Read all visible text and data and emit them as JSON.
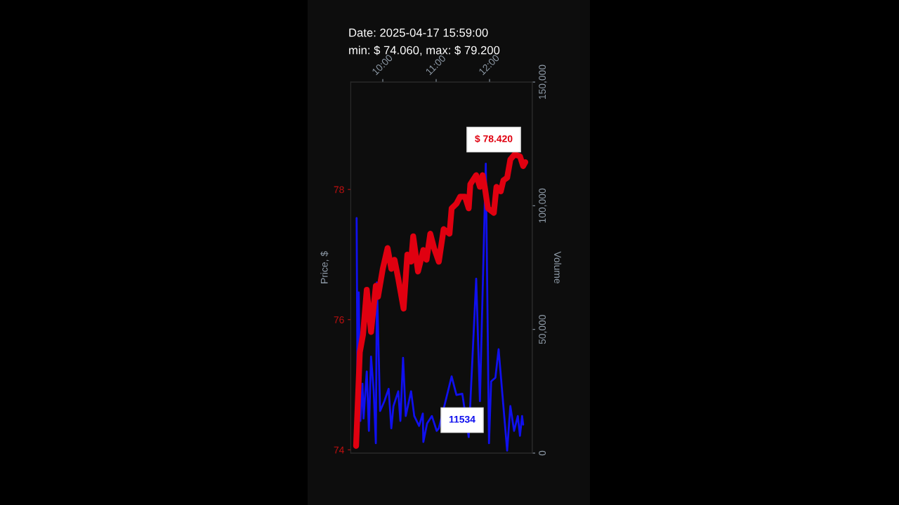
{
  "chart_data": {
    "type": "line",
    "title": "Date: 2025-04-17 15:59:00",
    "subtitle": "min: $ 74.060, max: $ 79.200",
    "ylabel": "Price, $",
    "y2label": "Volume",
    "xlim": [
      9.4,
      12.8
    ],
    "xticks": [
      {
        "value": 10,
        "label": "10:00"
      },
      {
        "value": 11,
        "label": "11:00"
      },
      {
        "value": 12,
        "label": "12:00"
      }
    ],
    "ylim": [
      73.95,
      79.65
    ],
    "yticks": [
      74,
      76,
      78
    ],
    "y2lim": [
      0,
      150000
    ],
    "y2ticks": [
      {
        "value": 0,
        "label": "0"
      },
      {
        "value": 50000,
        "label": "50,000"
      },
      {
        "value": 100000,
        "label": "100,000"
      },
      {
        "value": 150000,
        "label": "150,000"
      }
    ],
    "grid": false,
    "legend": false,
    "marker": "none",
    "line_style": "solid",
    "series": [
      {
        "color": "#e00010",
        "x": [
          9.5,
          9.57,
          9.63,
          9.7,
          9.78,
          9.87,
          9.91,
          10.0,
          10.09,
          10.16,
          10.22,
          10.29,
          10.39,
          10.46,
          10.53,
          10.57,
          10.66,
          10.76,
          10.82,
          10.89,
          10.96,
          11.05,
          11.14,
          11.25,
          11.29,
          11.38,
          11.45,
          11.54,
          11.61,
          11.64,
          11.75,
          11.82,
          11.87,
          11.91,
          11.97,
          12.08,
          12.13,
          12.21,
          12.26,
          12.33,
          12.39,
          12.47,
          12.57,
          12.63,
          12.67
        ],
        "values": [
          74.06,
          75.5,
          75.77,
          76.46,
          75.81,
          76.52,
          76.35,
          76.78,
          77.1,
          76.78,
          76.92,
          76.63,
          76.17,
          77.0,
          76.89,
          77.28,
          76.74,
          77.07,
          76.92,
          77.32,
          77.1,
          76.89,
          77.39,
          77.32,
          77.71,
          77.78,
          77.89,
          77.89,
          77.71,
          78.08,
          78.22,
          78.04,
          78.22,
          78.04,
          77.71,
          77.64,
          78.04,
          77.97,
          78.14,
          78.18,
          78.46,
          78.54,
          78.51,
          78.36,
          78.42
        ]
      },
      {
        "color": "#1010ee",
        "axis": "y2",
        "x": [
          9.51,
          9.53,
          9.55,
          9.58,
          9.62,
          9.64,
          9.7,
          9.74,
          9.78,
          9.83,
          9.87,
          9.89,
          9.95,
          10.03,
          10.11,
          10.16,
          10.2,
          10.29,
          10.33,
          10.38,
          10.43,
          10.53,
          10.59,
          10.68,
          10.75,
          10.76,
          10.83,
          10.92,
          11.01,
          11.05,
          11.29,
          11.38,
          11.49,
          11.61,
          11.68,
          11.75,
          11.82,
          11.93,
          11.99,
          12.03,
          12.11,
          12.17,
          12.24,
          12.33,
          12.39,
          12.46,
          12.53,
          12.57,
          12.61,
          12.63
        ],
        "values": [
          95000,
          16000,
          65000,
          13000,
          28000,
          14000,
          33000,
          9000,
          39000,
          25000,
          4000,
          69000,
          17000,
          21000,
          26000,
          10000,
          19000,
          25000,
          13000,
          38500,
          15000,
          25000,
          15000,
          11000,
          16000,
          4500,
          12000,
          15000,
          9000,
          10000,
          31000,
          23500,
          24000,
          6500,
          38500,
          70500,
          21000,
          117000,
          4000,
          29000,
          30500,
          42000,
          24000,
          1000,
          19000,
          9000,
          15000,
          7000,
          15000,
          11500
        ]
      }
    ],
    "annotations": [
      "$ 78.420",
      "11534"
    ]
  }
}
